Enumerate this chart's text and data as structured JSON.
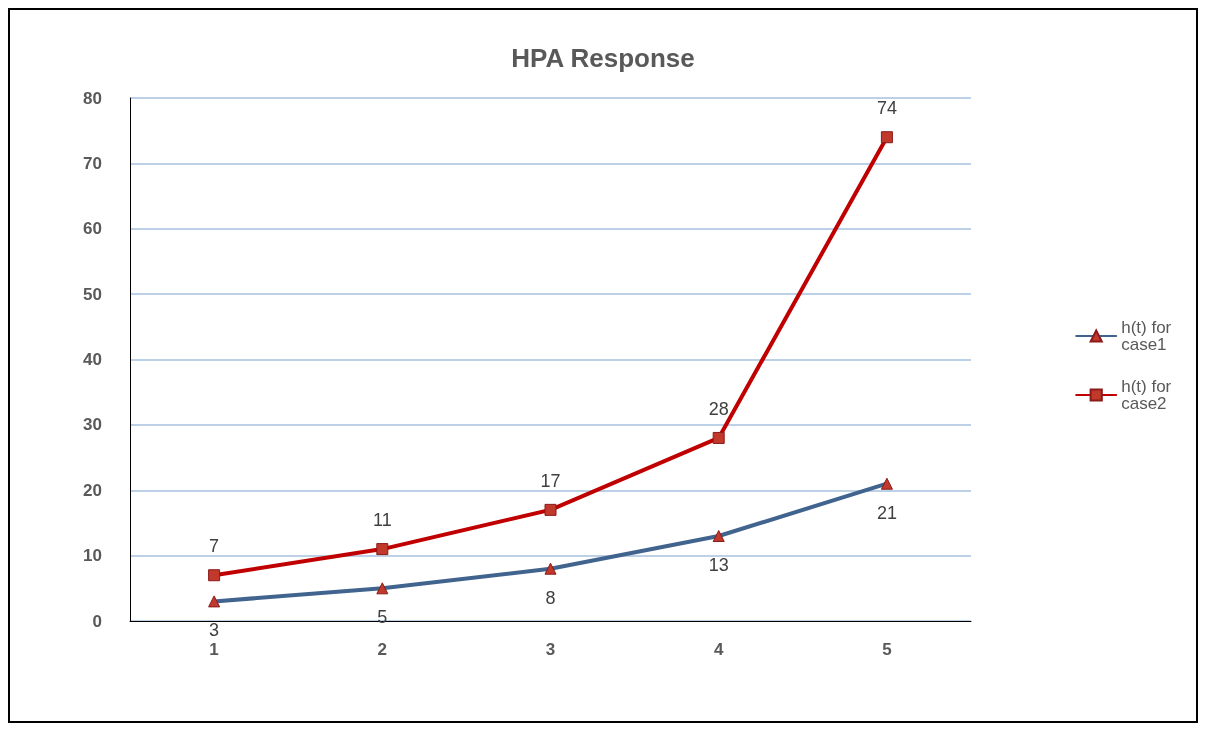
{
  "chart_data": {
    "type": "line",
    "title": "HPA Response",
    "categories": [
      "1",
      "2",
      "3",
      "4",
      "5"
    ],
    "series": [
      {
        "name": "h(t) for case1",
        "color": "#41648f",
        "marker": "triangle",
        "values": [
          3,
          5,
          8,
          13,
          21
        ]
      },
      {
        "name": "h(t) for case2",
        "color": "#c00000",
        "marker": "square",
        "values": [
          7,
          11,
          17,
          28,
          74
        ]
      }
    ],
    "ylim": [
      0,
      80
    ],
    "yticks": [
      0,
      10,
      20,
      30,
      40,
      50,
      60,
      70,
      80
    ],
    "grid": "y",
    "legend": "right",
    "data_labels": true
  }
}
